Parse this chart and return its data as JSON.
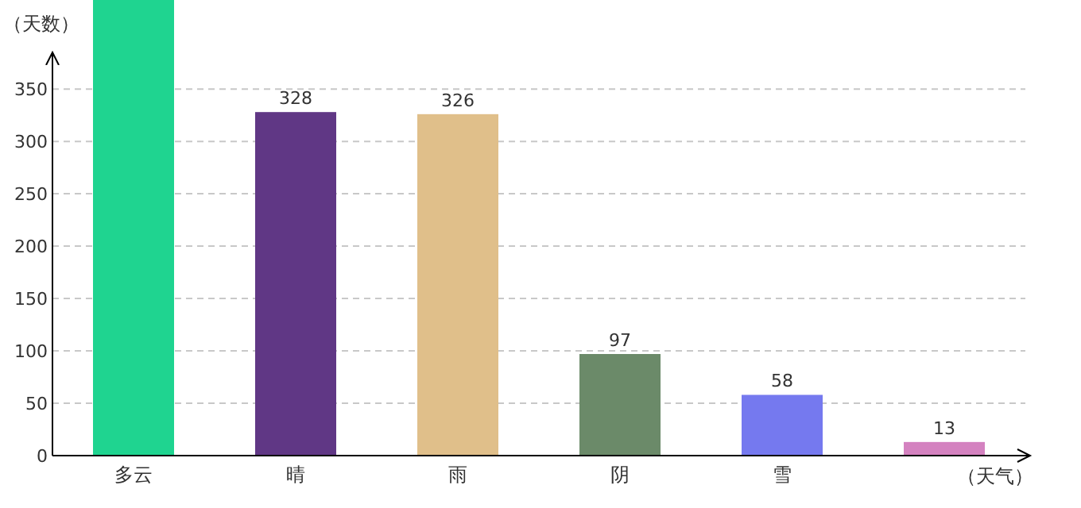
{
  "chart_data": {
    "type": "bar",
    "xlabel": "（天气）",
    "ylabel": "（天数）",
    "categories": [
      "多云",
      "晴",
      "雨",
      "阴",
      "雪",
      null
    ],
    "values": [
      435,
      328,
      326,
      97,
      58,
      13
    ],
    "colors": [
      "#1fd490",
      "#603785",
      "#e0bf8a",
      "#6b8a69",
      "#7579ef",
      "#d482c0"
    ],
    "value_labels": [
      null,
      "328",
      "326",
      "97",
      "58",
      "13"
    ],
    "ylim": [
      0,
      435
    ],
    "yticks": [
      0,
      50,
      100,
      150,
      200,
      250,
      300,
      350
    ],
    "grid": "y"
  }
}
